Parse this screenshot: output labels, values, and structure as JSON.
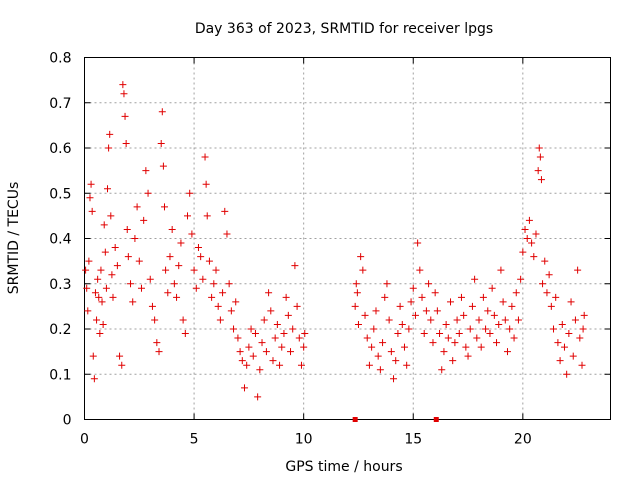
{
  "chart_data": {
    "type": "scatter",
    "title": "Day 363 of 2023, SRMTID for receiver lpgs",
    "xlabel": "GPS time / hours",
    "ylabel": "SRMTID / TECUs",
    "xlim": [
      0,
      24
    ],
    "ylim": [
      0,
      0.8
    ],
    "x_ticks": [
      0,
      5,
      10,
      15,
      20
    ],
    "x_tick_labels": [
      "0",
      "5",
      "10",
      "15",
      "20"
    ],
    "y_ticks": [
      0,
      0.1,
      0.2,
      0.3,
      0.4,
      0.5,
      0.6,
      0.7,
      0.8
    ],
    "y_tick_labels": [
      "0",
      "0.1",
      "0.2",
      "0.3",
      "0.4",
      "0.5",
      "0.6",
      "0.7",
      "0.8"
    ],
    "grid": true,
    "marker": "plus",
    "series": [
      {
        "name": "SRMTID",
        "color": "#e00000",
        "points": [
          [
            0.05,
            0.33
          ],
          [
            0.1,
            0.29
          ],
          [
            0.15,
            0.24
          ],
          [
            0.2,
            0.35
          ],
          [
            0.25,
            0.49
          ],
          [
            0.3,
            0.52
          ],
          [
            0.35,
            0.46
          ],
          [
            0.4,
            0.14
          ],
          [
            0.45,
            0.09
          ],
          [
            0.5,
            0.28
          ],
          [
            0.55,
            0.22
          ],
          [
            0.6,
            0.31
          ],
          [
            0.65,
            0.27
          ],
          [
            0.7,
            0.19
          ],
          [
            0.75,
            0.33
          ],
          [
            0.8,
            0.26
          ],
          [
            0.85,
            0.21
          ],
          [
            0.9,
            0.43
          ],
          [
            0.95,
            0.37
          ],
          [
            1.0,
            0.29
          ],
          [
            1.05,
            0.51
          ],
          [
            1.1,
            0.6
          ],
          [
            1.15,
            0.63
          ],
          [
            1.2,
            0.45
          ],
          [
            1.25,
            0.32
          ],
          [
            1.3,
            0.27
          ],
          [
            1.4,
            0.38
          ],
          [
            1.5,
            0.34
          ],
          [
            1.6,
            0.14
          ],
          [
            1.7,
            0.12
          ],
          [
            1.75,
            0.74
          ],
          [
            1.8,
            0.72
          ],
          [
            1.85,
            0.67
          ],
          [
            1.9,
            0.61
          ],
          [
            1.95,
            0.42
          ],
          [
            2.0,
            0.36
          ],
          [
            2.1,
            0.3
          ],
          [
            2.2,
            0.26
          ],
          [
            2.3,
            0.4
          ],
          [
            2.4,
            0.47
          ],
          [
            2.5,
            0.35
          ],
          [
            2.6,
            0.29
          ],
          [
            2.7,
            0.44
          ],
          [
            2.8,
            0.55
          ],
          [
            2.9,
            0.5
          ],
          [
            3.0,
            0.31
          ],
          [
            3.1,
            0.25
          ],
          [
            3.2,
            0.22
          ],
          [
            3.3,
            0.17
          ],
          [
            3.4,
            0.15
          ],
          [
            3.5,
            0.61
          ],
          [
            3.55,
            0.68
          ],
          [
            3.6,
            0.56
          ],
          [
            3.65,
            0.47
          ],
          [
            3.7,
            0.33
          ],
          [
            3.8,
            0.28
          ],
          [
            3.9,
            0.36
          ],
          [
            4.0,
            0.42
          ],
          [
            4.1,
            0.3
          ],
          [
            4.2,
            0.27
          ],
          [
            4.3,
            0.34
          ],
          [
            4.4,
            0.39
          ],
          [
            4.5,
            0.22
          ],
          [
            4.6,
            0.19
          ],
          [
            4.7,
            0.45
          ],
          [
            4.8,
            0.5
          ],
          [
            4.9,
            0.41
          ],
          [
            5.0,
            0.33
          ],
          [
            5.1,
            0.29
          ],
          [
            5.2,
            0.38
          ],
          [
            5.3,
            0.36
          ],
          [
            5.4,
            0.31
          ],
          [
            5.5,
            0.58
          ],
          [
            5.55,
            0.52
          ],
          [
            5.6,
            0.45
          ],
          [
            5.7,
            0.35
          ],
          [
            5.8,
            0.27
          ],
          [
            5.9,
            0.3
          ],
          [
            6.0,
            0.33
          ],
          [
            6.1,
            0.25
          ],
          [
            6.2,
            0.22
          ],
          [
            6.3,
            0.28
          ],
          [
            6.4,
            0.46
          ],
          [
            6.5,
            0.41
          ],
          [
            6.6,
            0.3
          ],
          [
            6.7,
            0.24
          ],
          [
            6.8,
            0.2
          ],
          [
            6.9,
            0.26
          ],
          [
            7.0,
            0.18
          ],
          [
            7.1,
            0.15
          ],
          [
            7.2,
            0.13
          ],
          [
            7.3,
            0.07
          ],
          [
            7.4,
            0.12
          ],
          [
            7.5,
            0.16
          ],
          [
            7.6,
            0.2
          ],
          [
            7.7,
            0.14
          ],
          [
            7.8,
            0.19
          ],
          [
            7.9,
            0.05
          ],
          [
            8.0,
            0.11
          ],
          [
            8.1,
            0.17
          ],
          [
            8.2,
            0.22
          ],
          [
            8.3,
            0.15
          ],
          [
            8.4,
            0.28
          ],
          [
            8.5,
            0.24
          ],
          [
            8.6,
            0.13
          ],
          [
            8.7,
            0.18
          ],
          [
            8.8,
            0.21
          ],
          [
            8.9,
            0.12
          ],
          [
            9.0,
            0.16
          ],
          [
            9.1,
            0.19
          ],
          [
            9.2,
            0.27
          ],
          [
            9.3,
            0.23
          ],
          [
            9.4,
            0.15
          ],
          [
            9.5,
            0.2
          ],
          [
            9.6,
            0.34
          ],
          [
            9.7,
            0.25
          ],
          [
            9.8,
            0.18
          ],
          [
            9.9,
            0.12
          ],
          [
            10.0,
            0.16
          ],
          [
            10.05,
            0.19
          ],
          [
            12.35,
            0.25
          ],
          [
            12.4,
            0.3
          ],
          [
            12.45,
            0.28
          ],
          [
            12.5,
            0.21
          ],
          [
            12.6,
            0.36
          ],
          [
            12.7,
            0.33
          ],
          [
            12.8,
            0.23
          ],
          [
            12.9,
            0.18
          ],
          [
            13.0,
            0.12
          ],
          [
            13.1,
            0.16
          ],
          [
            13.2,
            0.2
          ],
          [
            13.3,
            0.24
          ],
          [
            13.4,
            0.14
          ],
          [
            13.5,
            0.11
          ],
          [
            13.6,
            0.17
          ],
          [
            13.7,
            0.27
          ],
          [
            13.8,
            0.3
          ],
          [
            13.9,
            0.22
          ],
          [
            14.0,
            0.15
          ],
          [
            14.1,
            0.09
          ],
          [
            14.2,
            0.13
          ],
          [
            14.3,
            0.19
          ],
          [
            14.4,
            0.25
          ],
          [
            14.5,
            0.21
          ],
          [
            14.6,
            0.16
          ],
          [
            14.7,
            0.12
          ],
          [
            14.8,
            0.2
          ],
          [
            14.9,
            0.26
          ],
          [
            15.0,
            0.29
          ],
          [
            15.1,
            0.23
          ],
          [
            15.2,
            0.39
          ],
          [
            15.3,
            0.33
          ],
          [
            15.4,
            0.27
          ],
          [
            15.5,
            0.19
          ],
          [
            15.6,
            0.24
          ],
          [
            15.7,
            0.3
          ],
          [
            15.8,
            0.22
          ],
          [
            15.9,
            0.17
          ],
          [
            16.0,
            0.28
          ],
          [
            16.1,
            0.24
          ],
          [
            16.2,
            0.19
          ],
          [
            16.3,
            0.11
          ],
          [
            16.4,
            0.15
          ],
          [
            16.5,
            0.21
          ],
          [
            16.6,
            0.18
          ],
          [
            16.7,
            0.26
          ],
          [
            16.8,
            0.13
          ],
          [
            16.9,
            0.17
          ],
          [
            17.0,
            0.22
          ],
          [
            17.1,
            0.19
          ],
          [
            17.2,
            0.27
          ],
          [
            17.3,
            0.23
          ],
          [
            17.4,
            0.16
          ],
          [
            17.5,
            0.14
          ],
          [
            17.6,
            0.2
          ],
          [
            17.7,
            0.25
          ],
          [
            17.8,
            0.31
          ],
          [
            17.9,
            0.18
          ],
          [
            18.0,
            0.22
          ],
          [
            18.1,
            0.16
          ],
          [
            18.2,
            0.27
          ],
          [
            18.3,
            0.2
          ],
          [
            18.4,
            0.24
          ],
          [
            18.5,
            0.19
          ],
          [
            18.6,
            0.29
          ],
          [
            18.7,
            0.23
          ],
          [
            18.8,
            0.17
          ],
          [
            18.9,
            0.21
          ],
          [
            19.0,
            0.33
          ],
          [
            19.1,
            0.26
          ],
          [
            19.2,
            0.22
          ],
          [
            19.3,
            0.15
          ],
          [
            19.4,
            0.2
          ],
          [
            19.5,
            0.25
          ],
          [
            19.6,
            0.18
          ],
          [
            19.7,
            0.28
          ],
          [
            19.8,
            0.22
          ],
          [
            19.9,
            0.31
          ],
          [
            20.0,
            0.37
          ],
          [
            20.1,
            0.42
          ],
          [
            20.2,
            0.4
          ],
          [
            20.3,
            0.44
          ],
          [
            20.4,
            0.39
          ],
          [
            20.5,
            0.36
          ],
          [
            20.6,
            0.41
          ],
          [
            20.7,
            0.55
          ],
          [
            20.75,
            0.6
          ],
          [
            20.8,
            0.58
          ],
          [
            20.85,
            0.53
          ],
          [
            20.9,
            0.3
          ],
          [
            21.0,
            0.35
          ],
          [
            21.1,
            0.28
          ],
          [
            21.2,
            0.32
          ],
          [
            21.3,
            0.25
          ],
          [
            21.4,
            0.2
          ],
          [
            21.5,
            0.27
          ],
          [
            21.6,
            0.17
          ],
          [
            21.7,
            0.13
          ],
          [
            21.8,
            0.21
          ],
          [
            21.9,
            0.16
          ],
          [
            22.0,
            0.1
          ],
          [
            22.1,
            0.19
          ],
          [
            22.2,
            0.26
          ],
          [
            22.3,
            0.14
          ],
          [
            22.4,
            0.22
          ],
          [
            22.5,
            0.33
          ],
          [
            22.6,
            0.18
          ],
          [
            22.7,
            0.12
          ],
          [
            22.75,
            0.2
          ],
          [
            22.8,
            0.23
          ]
        ]
      }
    ],
    "baseline_markers": [
      [
        12.35,
        0
      ],
      [
        16.05,
        0
      ]
    ]
  }
}
